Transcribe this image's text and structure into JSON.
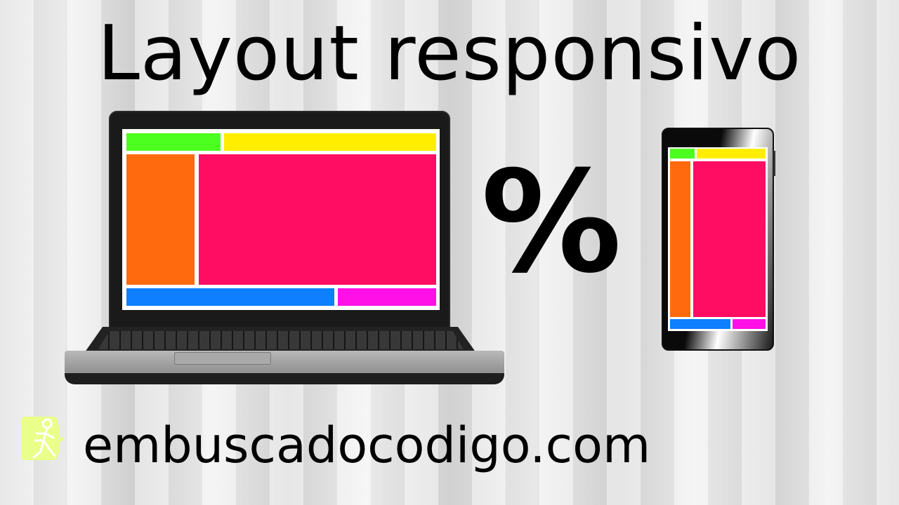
{
  "title": "Layout responsivo",
  "symbol": "%",
  "footer": {
    "site": "embuscadocodigo.com"
  },
  "colors": {
    "green": "#4cff1f",
    "yellow": "#ffee00",
    "orange": "#ff6a0f",
    "pink": "#ff0d62",
    "blue": "#0d7fff",
    "magenta": "#ff10e6"
  },
  "icons": [
    "logo-icon",
    "laptop-icon",
    "phone-icon"
  ]
}
